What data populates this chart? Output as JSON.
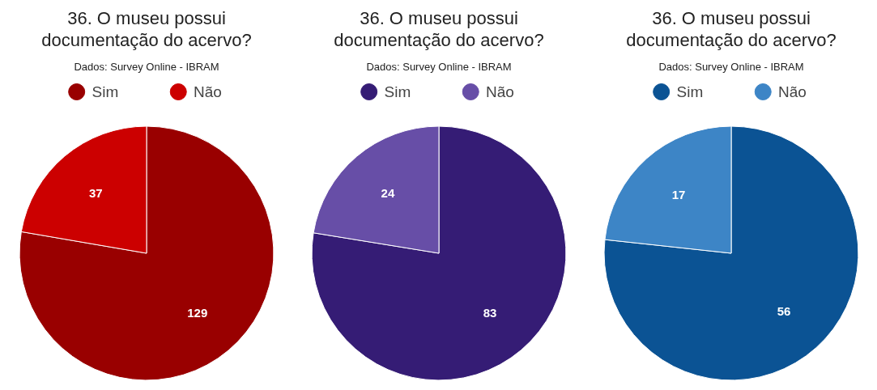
{
  "chart_data": [
    {
      "type": "pie",
      "title": "36. O museu possui\ndocumentação do acervo?",
      "subtitle": "Dados: Survey Online - IBRAM",
      "categories": [
        "Sim",
        "Não"
      ],
      "values": [
        129,
        37
      ],
      "colors": [
        "#990000",
        "#cc0000"
      ],
      "data_labels": true,
      "legend": "top"
    },
    {
      "type": "pie",
      "title": "36. O museu possui\ndocumentação do acervo?",
      "subtitle": "Dados: Survey Online - IBRAM",
      "categories": [
        "Sim",
        "Não"
      ],
      "values": [
        83,
        24
      ],
      "colors": [
        "#351c75",
        "#674ea7"
      ],
      "data_labels": true,
      "legend": "top"
    },
    {
      "type": "pie",
      "title": "36. O museu possui\ndocumentação do acervo?",
      "subtitle": "Dados: Survey Online - IBRAM",
      "categories": [
        "Sim",
        "Não"
      ],
      "values": [
        56,
        17
      ],
      "colors": [
        "#0b5394",
        "#3d85c6"
      ],
      "data_labels": true,
      "legend": "top"
    }
  ]
}
